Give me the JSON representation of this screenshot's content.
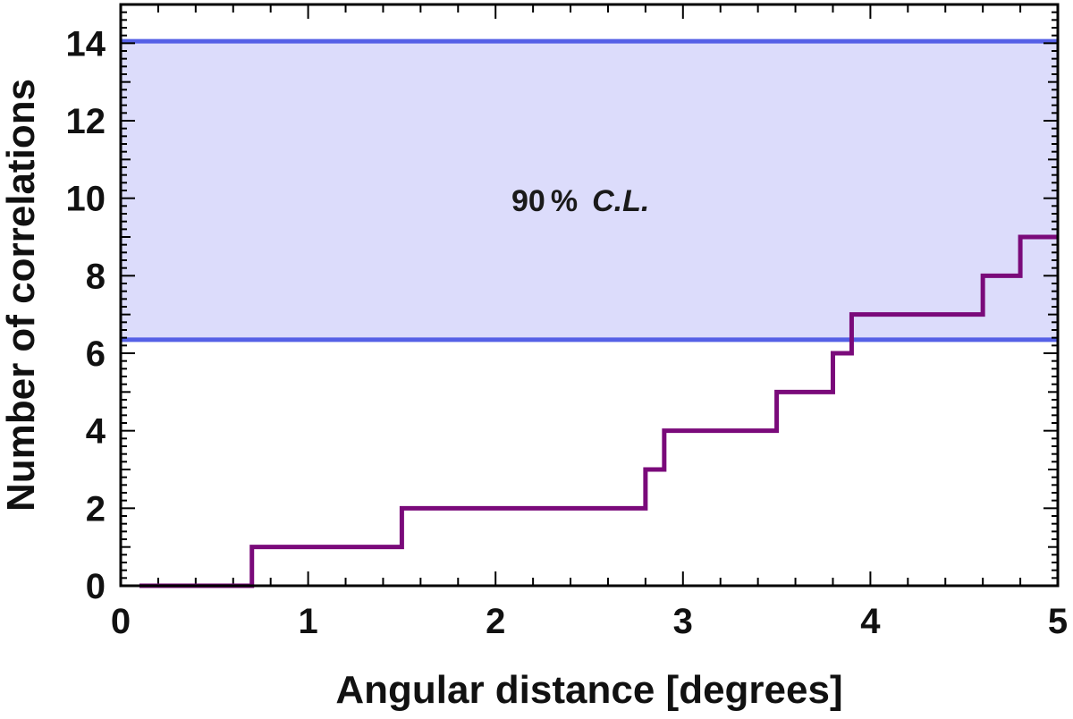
{
  "chart_data": {
    "type": "line",
    "xlabel": "Angular distance [degrees]",
    "ylabel": "Number of correlations",
    "xlim": [
      0,
      5
    ],
    "ylim": [
      0,
      15
    ],
    "xticks": [
      0,
      1,
      2,
      3,
      4,
      5
    ],
    "yticks": [
      0,
      2,
      4,
      6,
      8,
      10,
      12,
      14
    ],
    "grid": false,
    "band": {
      "label_main": "90",
      "label_pct": "%",
      "label_cl": "C.L.",
      "lower": 6.35,
      "upper": 14.05,
      "fill_color": "#dcdcfb",
      "line_color": "#5560e6"
    },
    "series": [
      {
        "color": "#7a0a7a",
        "step": true,
        "x": [
          0.1,
          0.7,
          1.5,
          2.8,
          2.9,
          3.5,
          3.8,
          3.9,
          4.6,
          4.8,
          5.0
        ],
        "y": [
          0,
          1,
          2,
          3,
          4,
          5,
          6,
          7,
          8,
          9,
          9
        ]
      }
    ]
  }
}
